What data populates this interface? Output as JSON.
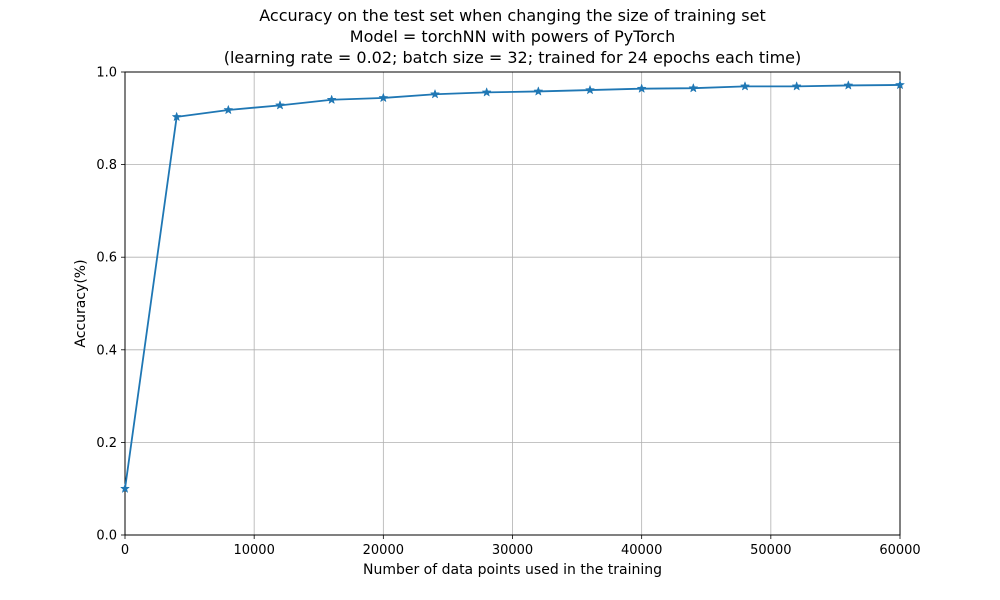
{
  "chart_data": {
    "type": "line",
    "title": [
      "Accuracy on the test set when changing the size of training set",
      "Model = torchNN with powers of PyTorch",
      "(learning rate = 0.02; batch size = 32; trained for 24 epochs each time)"
    ],
    "xlabel": "Number of data points used in the training",
    "ylabel": "Accuracy(%)",
    "xlim": [
      0,
      60000
    ],
    "ylim": [
      0,
      1.0
    ],
    "xticks": [
      0,
      10000,
      20000,
      30000,
      40000,
      50000,
      60000
    ],
    "xtick_labels": [
      "0",
      "10000",
      "20000",
      "30000",
      "40000",
      "50000",
      "60000"
    ],
    "yticks": [
      0,
      0.2,
      0.4,
      0.6,
      0.8,
      1.0
    ],
    "ytick_labels": [
      "0.0",
      "0.2",
      "0.4",
      "0.6",
      "0.8",
      "1.0"
    ],
    "grid": true,
    "marker": "star",
    "color": "#1f77b4",
    "x": [
      0,
      4000,
      8000,
      12000,
      16000,
      20000,
      24000,
      28000,
      32000,
      36000,
      40000,
      44000,
      48000,
      52000,
      56000,
      60000
    ],
    "y": [
      0.1,
      0.903,
      0.918,
      0.928,
      0.94,
      0.944,
      0.952,
      0.956,
      0.958,
      0.961,
      0.964,
      0.965,
      0.969,
      0.969,
      0.971,
      0.972
    ]
  }
}
